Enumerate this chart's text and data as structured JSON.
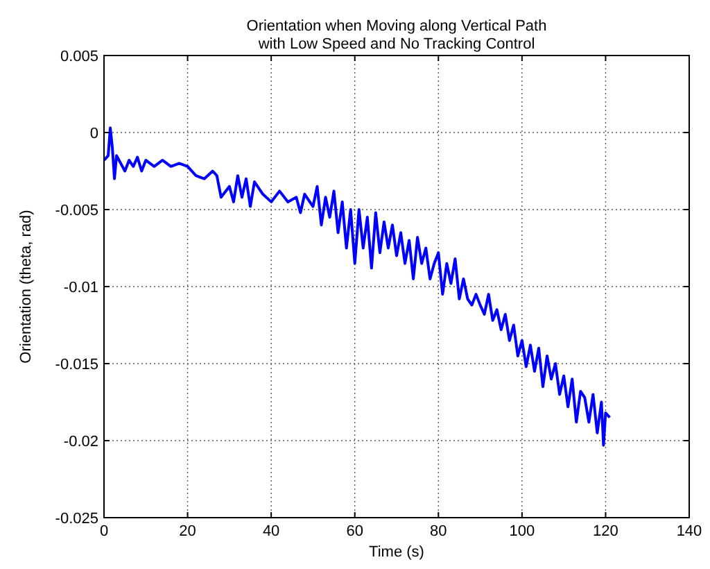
{
  "chart_data": {
    "type": "line",
    "title": "Orientation when Moving along Vertical Path\nwith Low Speed and No Tracking Control",
    "xlabel": "Time (s)",
    "ylabel": "Orientation (theta, rad)",
    "xlim": [
      0,
      140
    ],
    "xticks": [
      0,
      20,
      40,
      60,
      80,
      100,
      120,
      140
    ],
    "ylim": [
      -0.025,
      0.005
    ],
    "yticks": [
      {
        "value": -0.025,
        "label": "-0.025"
      },
      {
        "value": -0.02,
        "label": "-0.02"
      },
      {
        "value": -0.015,
        "label": "-0.015"
      },
      {
        "value": -0.01,
        "label": "-0.01"
      },
      {
        "value": -0.005,
        "label": "-0.005"
      },
      {
        "value": 0,
        "label": "0"
      },
      {
        "value": 0.005,
        "label": "0.005"
      }
    ],
    "grid": true,
    "series": [
      {
        "color": "#0000ff",
        "x": [
          0,
          1,
          1.5,
          2,
          2.5,
          3,
          4,
          5,
          6,
          7,
          8,
          9,
          10,
          11,
          12,
          14,
          16,
          18,
          20,
          22,
          24,
          26,
          27,
          28,
          30,
          31,
          32,
          33,
          34,
          35,
          36,
          38,
          40,
          42,
          44,
          46,
          47,
          48,
          50,
          51,
          52,
          53,
          54,
          55,
          56,
          57,
          58,
          59,
          60,
          61,
          62,
          63,
          64,
          65,
          66,
          67,
          68,
          69,
          70,
          71,
          72,
          73,
          74,
          75,
          76,
          77,
          78,
          79,
          80,
          81,
          82,
          83,
          84,
          85,
          86,
          87,
          88,
          89,
          90,
          91,
          92,
          93,
          94,
          95,
          96,
          97,
          98,
          99,
          100,
          101,
          102,
          103,
          104,
          105,
          106,
          107,
          108,
          109,
          110,
          111,
          112,
          113,
          114,
          115,
          116,
          117,
          118,
          119,
          119.5,
          120,
          121
        ],
        "values": [
          -0.0018,
          -0.0015,
          0.0003,
          -0.001,
          -0.003,
          -0.0015,
          -0.002,
          -0.0025,
          -0.0018,
          -0.0022,
          -0.0016,
          -0.0025,
          -0.0018,
          -0.002,
          -0.0022,
          -0.0018,
          -0.0022,
          -0.002,
          -0.0022,
          -0.0028,
          -0.003,
          -0.0025,
          -0.0028,
          -0.0042,
          -0.0035,
          -0.0045,
          -0.0028,
          -0.0042,
          -0.003,
          -0.0048,
          -0.0032,
          -0.004,
          -0.0045,
          -0.0038,
          -0.0045,
          -0.0042,
          -0.0052,
          -0.004,
          -0.0048,
          -0.0035,
          -0.006,
          -0.0042,
          -0.0055,
          -0.0038,
          -0.0065,
          -0.0045,
          -0.0075,
          -0.005,
          -0.0085,
          -0.005,
          -0.0075,
          -0.0055,
          -0.0088,
          -0.0052,
          -0.0078,
          -0.0058,
          -0.0075,
          -0.006,
          -0.008,
          -0.0065,
          -0.0085,
          -0.007,
          -0.0095,
          -0.0068,
          -0.0085,
          -0.0075,
          -0.0095,
          -0.0085,
          -0.0078,
          -0.0105,
          -0.0085,
          -0.0098,
          -0.0082,
          -0.0108,
          -0.0095,
          -0.0108,
          -0.0112,
          -0.0105,
          -0.0112,
          -0.0118,
          -0.0105,
          -0.0122,
          -0.0115,
          -0.0128,
          -0.0118,
          -0.0135,
          -0.0125,
          -0.0145,
          -0.0135,
          -0.0152,
          -0.0138,
          -0.0155,
          -0.014,
          -0.0165,
          -0.0145,
          -0.016,
          -0.015,
          -0.017,
          -0.0158,
          -0.0178,
          -0.016,
          -0.0188,
          -0.0168,
          -0.0172,
          -0.0188,
          -0.017,
          -0.0195,
          -0.0175,
          -0.0203,
          -0.0182,
          -0.0185
        ]
      }
    ]
  }
}
